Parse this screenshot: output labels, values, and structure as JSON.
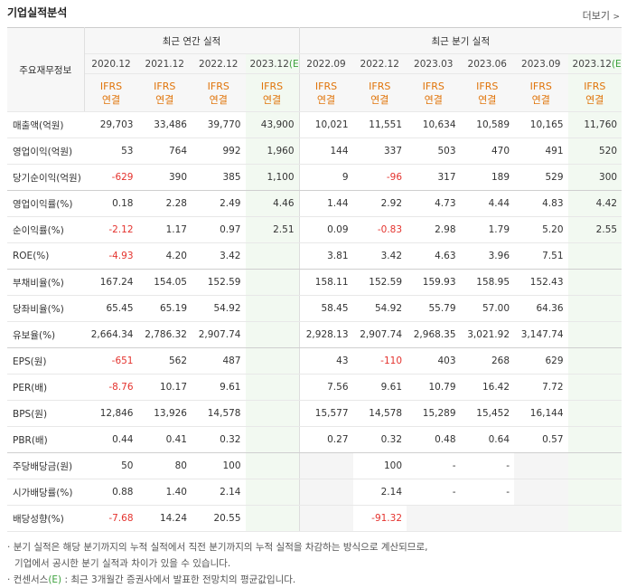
{
  "header": {
    "title": "기업실적분석",
    "more": "더보기"
  },
  "table": {
    "corner": "주요재무정보",
    "groups": [
      {
        "label": "최근 연간 실적",
        "span": 4
      },
      {
        "label": "최근 분기 실적",
        "span": 6
      }
    ],
    "periods": [
      {
        "date": "2020.12"
      },
      {
        "date": "2021.12"
      },
      {
        "date": "2022.12"
      },
      {
        "date": "2023.12",
        "estimate": "(E)"
      },
      {
        "date": "2022.09"
      },
      {
        "date": "2022.12"
      },
      {
        "date": "2023.03"
      },
      {
        "date": "2023.06"
      },
      {
        "date": "2023.09"
      },
      {
        "date": "2023.12",
        "estimate": "(E)"
      }
    ],
    "basis": [
      {
        "standard": "IFRS",
        "scope": "연결"
      },
      {
        "standard": "IFRS",
        "scope": "연결"
      },
      {
        "standard": "IFRS",
        "scope": "연결"
      },
      {
        "standard": "IFRS",
        "scope": "연결"
      },
      {
        "standard": "IFRS",
        "scope": "연결"
      },
      {
        "standard": "IFRS",
        "scope": "연결"
      },
      {
        "standard": "IFRS",
        "scope": "연결"
      },
      {
        "standard": "IFRS",
        "scope": "연결"
      },
      {
        "standard": "IFRS",
        "scope": "연결"
      },
      {
        "standard": "IFRS",
        "scope": "연결"
      }
    ],
    "rows": [
      {
        "label": "매출액(억원)",
        "values": [
          "29,703",
          "33,486",
          "39,770",
          "43,900",
          "10,021",
          "11,551",
          "10,634",
          "10,589",
          "10,165",
          "11,760"
        ]
      },
      {
        "label": "영업이익(억원)",
        "values": [
          "53",
          "764",
          "992",
          "1,960",
          "144",
          "337",
          "503",
          "470",
          "491",
          "520"
        ]
      },
      {
        "label": "당기순이익(억원)",
        "values": [
          "-629",
          "390",
          "385",
          "1,100",
          "9",
          "-96",
          "317",
          "189",
          "529",
          "300"
        ],
        "group_end": true
      },
      {
        "label": "영업이익률(%)",
        "values": [
          "0.18",
          "2.28",
          "2.49",
          "4.46",
          "1.44",
          "2.92",
          "4.73",
          "4.44",
          "4.83",
          "4.42"
        ]
      },
      {
        "label": "순이익률(%)",
        "values": [
          "-2.12",
          "1.17",
          "0.97",
          "2.51",
          "0.09",
          "-0.83",
          "2.98",
          "1.79",
          "5.20",
          "2.55"
        ]
      },
      {
        "label": "ROE(%)",
        "values": [
          "-4.93",
          "4.20",
          "3.42",
          null,
          "3.81",
          "3.42",
          "4.63",
          "3.96",
          "7.51",
          null
        ],
        "group_end": true
      },
      {
        "label": "부채비율(%)",
        "values": [
          "167.24",
          "154.05",
          "152.59",
          null,
          "158.11",
          "152.59",
          "159.93",
          "158.95",
          "152.43",
          null
        ]
      },
      {
        "label": "당좌비율(%)",
        "values": [
          "65.45",
          "65.19",
          "54.92",
          null,
          "58.45",
          "54.92",
          "55.79",
          "57.00",
          "64.36",
          null
        ]
      },
      {
        "label": "유보율(%)",
        "values": [
          "2,664.34",
          "2,786.32",
          "2,907.74",
          null,
          "2,928.13",
          "2,907.74",
          "2,968.35",
          "3,021.92",
          "3,147.74",
          null
        ],
        "group_end": true
      },
      {
        "label": "EPS(원)",
        "values": [
          "-651",
          "562",
          "487",
          null,
          "43",
          "-110",
          "403",
          "268",
          "629",
          null
        ]
      },
      {
        "label": "PER(배)",
        "values": [
          "-8.76",
          "10.17",
          "9.61",
          null,
          "7.56",
          "9.61",
          "10.79",
          "16.42",
          "7.72",
          null
        ]
      },
      {
        "label": "BPS(원)",
        "values": [
          "12,846",
          "13,926",
          "14,578",
          null,
          "15,577",
          "14,578",
          "15,289",
          "15,452",
          "16,144",
          null
        ]
      },
      {
        "label": "PBR(배)",
        "values": [
          "0.44",
          "0.41",
          "0.32",
          null,
          "0.27",
          "0.32",
          "0.48",
          "0.64",
          "0.57",
          null
        ],
        "group_end": true
      },
      {
        "label": "주당배당금(원)",
        "values": [
          "50",
          "80",
          "100",
          null,
          null,
          "100",
          "-",
          "-",
          null,
          null
        ]
      },
      {
        "label": "시가배당률(%)",
        "values": [
          "0.88",
          "1.40",
          "2.14",
          null,
          null,
          "2.14",
          "-",
          "-",
          null,
          null
        ]
      },
      {
        "label": "배당성향(%)",
        "values": [
          "-7.68",
          "14.24",
          "20.55",
          null,
          null,
          "-91.32",
          null,
          null,
          null,
          null
        ]
      }
    ]
  },
  "notes": {
    "quarterly": [
      "분기 실적은 해당 분기까지의 누적 실적에서 직전 분기까지의 누적 실적을 차감하는 방식으로 계산되므로,",
      "기업에서 공시한 분기 실적과 차이가 있을 수 있습니다."
    ],
    "consensus": {
      "term": "컨센서스",
      "mark": "(E)",
      "text": ": 최근 3개월간 증권사에서 발표한 전망치의 평균값입니다."
    }
  }
}
